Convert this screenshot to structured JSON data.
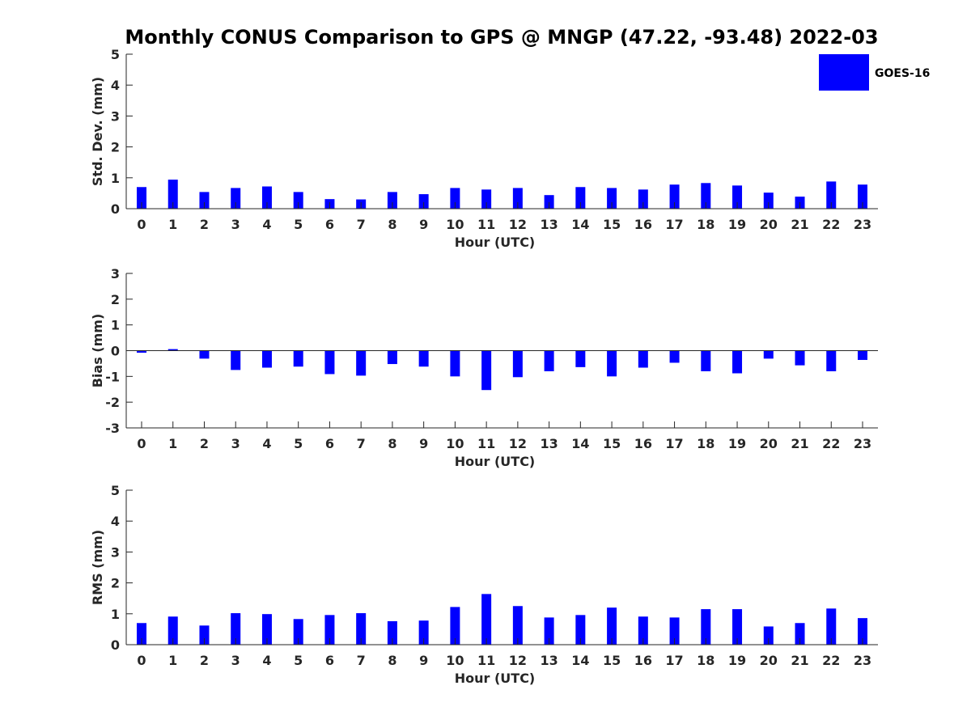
{
  "chart_data": {
    "title": "Monthly CONUS Comparison to GPS @ MNGP (47.22, -93.48) 2022-03",
    "series_name": "GOES-16",
    "bar_color": "#0000ff",
    "legend_position": "top-right",
    "categories": [
      "0",
      "1",
      "2",
      "3",
      "4",
      "5",
      "6",
      "7",
      "8",
      "9",
      "10",
      "11",
      "12",
      "13",
      "14",
      "15",
      "16",
      "17",
      "18",
      "19",
      "20",
      "21",
      "22",
      "23"
    ],
    "panels": [
      {
        "type": "bar",
        "ylabel": "Std. Dev. (mm)",
        "xlabel": "Hour (UTC)",
        "ylim": [
          0,
          5
        ],
        "yticks": [
          0,
          1,
          2,
          3,
          4,
          5
        ],
        "values": [
          0.7,
          0.94,
          0.54,
          0.67,
          0.72,
          0.54,
          0.31,
          0.3,
          0.54,
          0.47,
          0.67,
          0.62,
          0.67,
          0.44,
          0.7,
          0.67,
          0.62,
          0.78,
          0.83,
          0.75,
          0.52,
          0.39,
          0.88,
          0.78
        ]
      },
      {
        "type": "bar",
        "ylabel": "Bias (mm)",
        "xlabel": "Hour (UTC)",
        "ylim": [
          -3,
          3
        ],
        "yticks": [
          -3,
          -2,
          -1,
          0,
          1,
          2,
          3
        ],
        "values": [
          -0.08,
          0.06,
          -0.31,
          -0.75,
          -0.66,
          -0.62,
          -0.91,
          -0.97,
          -0.52,
          -0.62,
          -1.0,
          -1.53,
          -1.03,
          -0.8,
          -0.64,
          -1.0,
          -0.66,
          -0.47,
          -0.8,
          -0.88,
          -0.31,
          -0.57,
          -0.8,
          -0.36
        ]
      },
      {
        "type": "bar",
        "ylabel": "RMS (mm)",
        "xlabel": "Hour (UTC)",
        "ylim": [
          0,
          5
        ],
        "yticks": [
          0,
          1,
          2,
          3,
          4,
          5
        ],
        "values": [
          0.7,
          0.91,
          0.62,
          1.02,
          0.99,
          0.83,
          0.96,
          1.02,
          0.76,
          0.78,
          1.22,
          1.64,
          1.25,
          0.88,
          0.96,
          1.2,
          0.91,
          0.88,
          1.15,
          1.15,
          0.59,
          0.7,
          1.17,
          0.86
        ]
      }
    ]
  }
}
